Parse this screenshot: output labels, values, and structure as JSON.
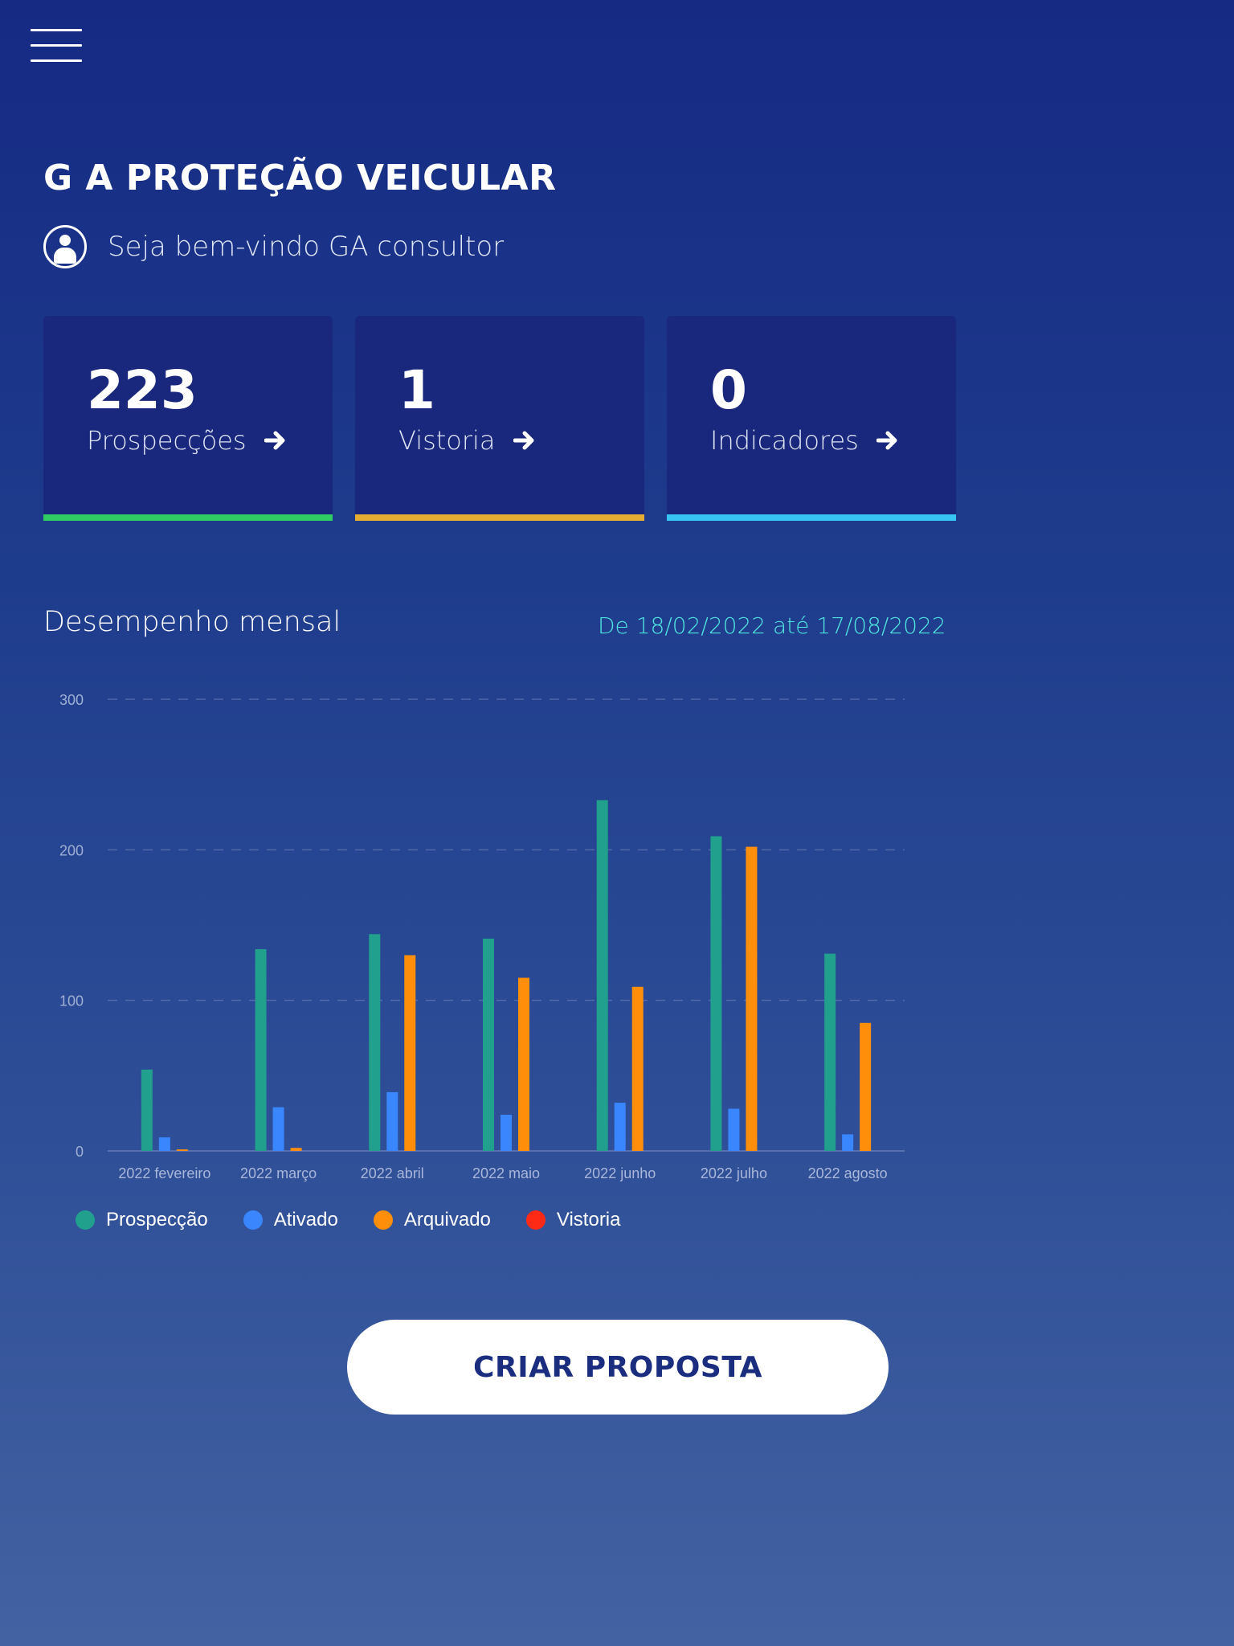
{
  "header": {
    "menu_icon": "hamburger-menu-icon",
    "title": "G A PROTEÇÃO VEICULAR",
    "welcome_text": "Seja bem-vindo GA consultor",
    "avatar_icon": "user-icon"
  },
  "cards": [
    {
      "value": "223",
      "label": "Prospecções",
      "icon": "arrow-right-icon",
      "accent": "#2ecc63"
    },
    {
      "value": "1",
      "label": "Vistoria",
      "icon": "arrow-right-icon",
      "accent": "#e6ad33"
    },
    {
      "value": "0",
      "label": "Indicadores",
      "icon": "arrow-right-icon",
      "accent": "#37c5f3"
    }
  ],
  "section": {
    "title": "Desempenho mensal",
    "date_range": "De 18/02/2022 até 17/08/2022"
  },
  "chart_data": {
    "type": "bar",
    "categories": [
      "2022 fevereiro",
      "2022 março",
      "2022 abril",
      "2022 maio",
      "2022 junho",
      "2022 julho",
      "2022 agosto"
    ],
    "series": [
      {
        "name": "Prospecção",
        "color": "#21a08d",
        "values": [
          54,
          134,
          144,
          141,
          233,
          209,
          131
        ]
      },
      {
        "name": "Ativado",
        "color": "#3a86ff",
        "values": [
          9,
          29,
          39,
          24,
          32,
          28,
          11
        ]
      },
      {
        "name": "Arquivado",
        "color": "#ff8f0a",
        "values": [
          1,
          2,
          130,
          115,
          109,
          202,
          85
        ]
      },
      {
        "name": "Vistoria",
        "color": "#ff2a16",
        "values": [
          0,
          0,
          0,
          0,
          0,
          0,
          0
        ]
      }
    ],
    "yticks": [
      0,
      100,
      200,
      300
    ],
    "ylim": [
      0,
      300
    ],
    "grid": true,
    "legend": "bottom-left"
  },
  "actions": {
    "create_proposal": "CRIAR PROPOSTA"
  }
}
